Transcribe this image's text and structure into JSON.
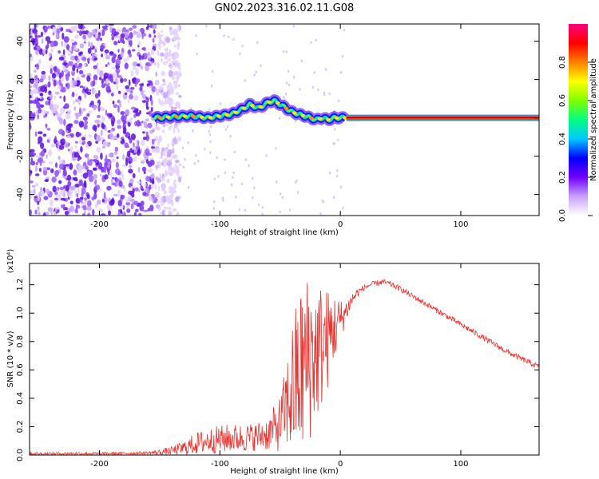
{
  "title": "GN02.2023.316.02.11.G08",
  "chart_data": [
    {
      "type": "heatmap",
      "name": "spectrogram",
      "xlabel": "Height of straight line (km)",
      "ylabel": "Frequency (Hz)",
      "xlim": [
        -258,
        165
      ],
      "ylim": [
        -51,
        49
      ],
      "xticks": [
        -200,
        -100,
        0,
        100
      ],
      "yticks": [
        -40,
        -20,
        0,
        20,
        40
      ],
      "ridge": {
        "x": [
          -155,
          -140,
          -125,
          -110,
          -100,
          -90,
          -80,
          -75,
          -68,
          -60,
          -55,
          -50,
          -45,
          -40,
          -35,
          -30,
          -25,
          -20,
          -15,
          -10,
          -5,
          0,
          5
        ],
        "y": [
          0,
          0.5,
          1,
          0,
          1,
          2,
          5,
          7,
          5,
          8,
          9,
          7,
          5,
          3,
          2,
          1,
          0,
          -1,
          0,
          -1,
          0,
          0,
          0
        ]
      },
      "carrier": {
        "x_start": 5,
        "x_end": 165,
        "y": 0
      },
      "noise_region": {
        "x_end": -145
      },
      "colorbar": {
        "label": "Normalized spectral amplitude",
        "range": [
          0.0,
          1.0
        ],
        "ticks": [
          "0.0",
          "0.2",
          "0.4",
          "0.6",
          "0.8"
        ],
        "colors": [
          "#ffffff",
          "#c8a0ff",
          "#7000ff",
          "#0000ff",
          "#00c8ff",
          "#00ff80",
          "#80ff00",
          "#ffff00",
          "#ff8000",
          "#ff0000",
          "#ff0080"
        ]
      }
    },
    {
      "type": "line",
      "name": "snr",
      "xlabel": "Height of straight line (km)",
      "ylabel": "SNR (10 * v/v)",
      "scale_label": "(x10⁴)",
      "xlim": [
        -258,
        165
      ],
      "ylim": [
        0,
        1.35
      ],
      "xticks": [
        -200,
        -100,
        0,
        100
      ],
      "yticks": [
        "0.0",
        "0.2",
        "0.4",
        "0.6",
        "0.8",
        "1.0",
        "1.2"
      ],
      "color": "#e8322e",
      "series": [
        {
          "name": "SNR",
          "x": [
            -258,
            -240,
            -220,
            -200,
            -180,
            -160,
            -150,
            -140,
            -130,
            -120,
            -110,
            -100,
            -90,
            -80,
            -70,
            -60,
            -50,
            -45,
            -40,
            -35,
            -30,
            -25,
            -20,
            -15,
            -10,
            -5,
            0,
            5,
            10,
            15,
            20,
            25,
            30,
            35,
            40,
            50,
            60,
            70,
            80,
            90,
            100,
            110,
            120,
            130,
            140,
            150,
            160,
            165
          ],
          "y": [
            0.01,
            0.01,
            0.012,
            0.01,
            0.012,
            0.015,
            0.02,
            0.03,
            0.05,
            0.08,
            0.1,
            0.11,
            0.12,
            0.12,
            0.13,
            0.15,
            0.22,
            0.35,
            0.45,
            0.55,
            0.62,
            0.7,
            0.72,
            0.78,
            0.82,
            0.9,
            0.95,
            1.02,
            1.1,
            1.15,
            1.18,
            1.2,
            1.21,
            1.22,
            1.21,
            1.17,
            1.12,
            1.07,
            1.02,
            0.97,
            0.92,
            0.87,
            0.82,
            0.77,
            0.72,
            0.68,
            0.64,
            0.62
          ],
          "noise_amplitude": [
            0.01,
            0.01,
            0.01,
            0.01,
            0.01,
            0.01,
            0.02,
            0.03,
            0.05,
            0.08,
            0.09,
            0.1,
            0.1,
            0.1,
            0.1,
            0.12,
            0.2,
            0.3,
            0.5,
            0.6,
            0.65,
            0.6,
            0.5,
            0.45,
            0.35,
            0.25,
            0.15,
            0.08,
            0.05,
            0.03,
            0.02,
            0.02,
            0.02,
            0.02,
            0.02,
            0.02,
            0.02,
            0.02,
            0.02,
            0.02,
            0.02,
            0.02,
            0.02,
            0.02,
            0.02,
            0.02,
            0.02,
            0.02
          ]
        }
      ]
    }
  ]
}
